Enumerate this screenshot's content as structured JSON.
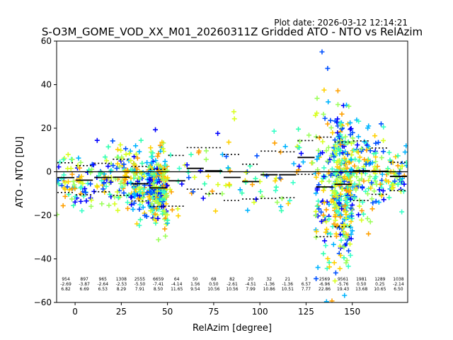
{
  "plot_date": "Plot date: 2026-03-12 12:14:21",
  "chart_data": {
    "type": "scatter",
    "title": "S-O3M_GOME_VOD_XX_M01_20260311Z Gridded ATO - NTO vs RelAzim",
    "xlabel": "RelAzim [degree]",
    "ylabel": "ATO - NTO [DU]",
    "xlim": [
      -10,
      180
    ],
    "ylim": [
      -60,
      60
    ],
    "xticks": [
      0,
      25,
      50,
      75,
      100,
      125,
      150
    ],
    "yticks": [
      -60,
      -40,
      -20,
      0,
      20,
      40,
      60
    ],
    "grid": false,
    "zero_line": 0,
    "marker": "+",
    "scatter_colors": [
      "#0000ff",
      "#0050ff",
      "#00b4ff",
      "#38ffc8",
      "#30ffb0",
      "#9cff5c",
      "#d8ff20",
      "#ffd000",
      "#ffa000"
    ],
    "bins": [
      {
        "center": -5,
        "count": "954",
        "mean": -2.69,
        "std": 6.82,
        "mean_label": "-2.69",
        "std_label": "6.82"
      },
      {
        "center": 5,
        "count": "897",
        "mean": -3.87,
        "std": 6.69,
        "mean_label": "-3.87",
        "std_label": "6.69"
      },
      {
        "center": 15,
        "count": "965",
        "mean": -2.64,
        "std": 6.53,
        "mean_label": "-2.64",
        "std_label": "6.53"
      },
      {
        "center": 25,
        "count": "1308",
        "mean": -2.53,
        "std": 8.29,
        "mean_label": "-2.53",
        "std_label": "8.29"
      },
      {
        "center": 35,
        "count": "2555",
        "mean": -5.5,
        "std": 7.91,
        "mean_label": "-5.50",
        "std_label": "7.91"
      },
      {
        "center": 45,
        "count": "6659",
        "mean": -7.41,
        "std": 8.5,
        "mean_label": "-7.41",
        "std_label": "8.50"
      },
      {
        "center": 55,
        "count": "64",
        "mean": -4.14,
        "std": 11.65,
        "mean_label": "-4.14",
        "std_label": "11.65"
      },
      {
        "center": 65,
        "count": "50",
        "mean": 1.56,
        "std": 9.54,
        "mean_label": "1.56",
        "std_label": "9.54"
      },
      {
        "center": 75,
        "count": "68",
        "mean": 0.5,
        "std": 10.56,
        "mean_label": "0.50",
        "std_label": "10.56"
      },
      {
        "center": 85,
        "count": "82",
        "mean": -2.61,
        "std": 10.56,
        "mean_label": "-2.61",
        "std_label": "10.56"
      },
      {
        "center": 95,
        "count": "20",
        "mean": -4.51,
        "std": 7.99,
        "mean_label": "-4.51",
        "std_label": "7.99"
      },
      {
        "center": 105,
        "count": "32",
        "mean": -1.36,
        "std": 10.86,
        "mean_label": "-1.36",
        "std_label": "10.86"
      },
      {
        "center": 115,
        "count": "21",
        "mean": -1.36,
        "std": 10.51,
        "mean_label": "-1.36",
        "std_label": "10.51"
      },
      {
        "center": 125,
        "count": "3",
        "mean": 6.57,
        "std": 7.77,
        "mean_label": "6.57",
        "std_label": "7.77"
      },
      {
        "center": 135,
        "count": "2569",
        "mean": -6.96,
        "std": 22.86,
        "mean_label": "-6.96",
        "std_label": "22.86"
      },
      {
        "center": 145,
        "count": "9561",
        "mean": -5.76,
        "std": 19.43,
        "mean_label": "-5.76",
        "std_label": "19.43"
      },
      {
        "center": 155,
        "count": "1981",
        "mean": 0.5,
        "std": 13.68,
        "mean_label": "0.50",
        "std_label": "13.68"
      },
      {
        "center": 165,
        "count": "1289",
        "mean": 0.25,
        "std": 10.65,
        "mean_label": "0.25",
        "std_label": "10.65"
      },
      {
        "center": 175,
        "count": "1038",
        "mean": -2.14,
        "std": 6.5,
        "mean_label": "-2.14",
        "std_label": "6.50"
      }
    ]
  }
}
